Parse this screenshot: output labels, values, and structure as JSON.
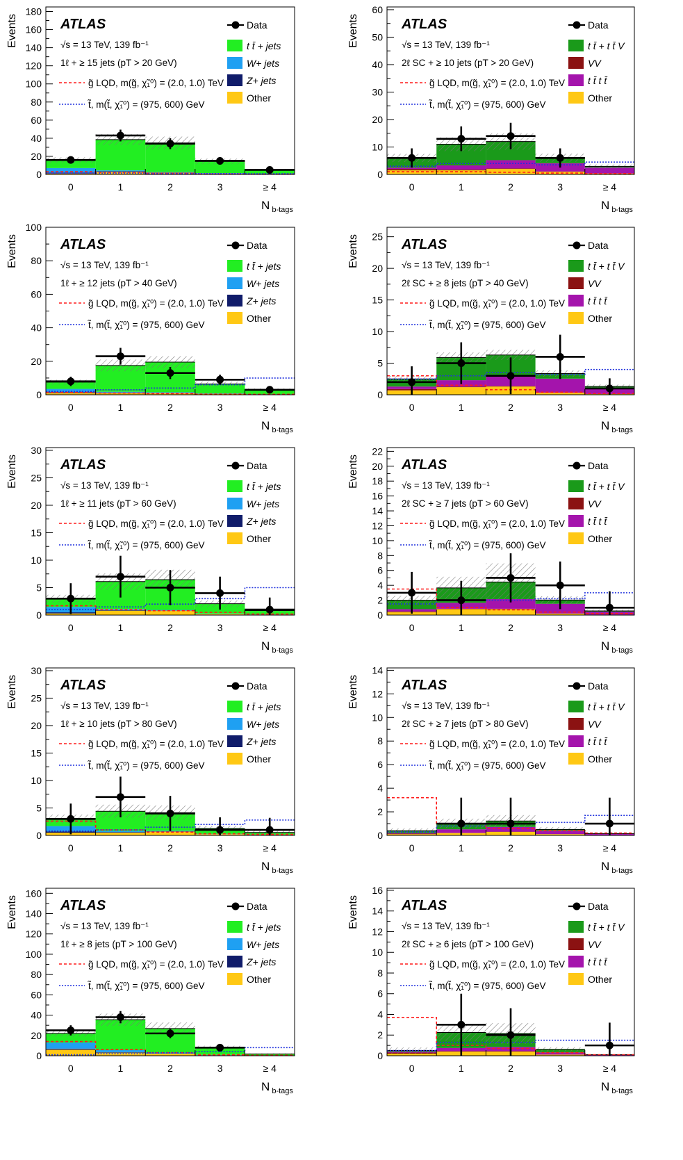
{
  "legend_labels": {
    "data": "Data",
    "ttbar_jets": "t t̄ + jets",
    "w_jets": "W+ jets",
    "z_jets": "Z+ jets",
    "other": "Other",
    "ttbar_ttv": "t t̄ + t t̄ V",
    "vv": "VV",
    "tttt": "t t̄ t t̄",
    "gluino": "g̃ LQD, m(g̃, χ̃₁⁰) = (2.0, 1.0) TeV",
    "stop": "t̃, m(t̃, χ̃₁⁰) = (975, 600) GeV"
  },
  "common_text": {
    "experiment": "ATLAS",
    "energy_lumi": "√s = 13 TeV, 139 fb⁻¹",
    "xlabel": "N b-tags",
    "ylabel": "Events"
  },
  "colors": {
    "ttbar_jets": "#22ee22",
    "w_jets": "#1fa0f2",
    "z_jets": "#101c6a",
    "other": "#ffc814",
    "ttbar_ttv": "#1a9a1a",
    "vv": "#8b1212",
    "tttt": "#a414ac",
    "gluino": "#ff1a1a",
    "stop": "#2233dd",
    "data": "#000000"
  },
  "chart_data": [
    {
      "type": "bar",
      "stacked": true,
      "channel": "1l",
      "selection": "1ℓ + ≥ 15 jets (pT > 20 GeV)",
      "categories": [
        "0",
        "1",
        "2",
        "3",
        "≥ 4"
      ],
      "ylim": [
        0,
        185
      ],
      "yticks": [
        0,
        20,
        40,
        60,
        80,
        100,
        120,
        140,
        160,
        180
      ],
      "series": [
        {
          "name": "Other",
          "values": [
            1,
            3,
            2,
            1,
            0.5
          ]
        },
        {
          "name": "Z+ jets",
          "values": [
            1,
            0.5,
            0.3,
            0.2,
            0.1
          ]
        },
        {
          "name": "W+ jets",
          "values": [
            5,
            1,
            0.5,
            0.3,
            0.1
          ]
        },
        {
          "name": "t t̄ + jets",
          "values": [
            9,
            34,
            32,
            13,
            4.4
          ]
        }
      ],
      "uncertainty": [
        3,
        6,
        7,
        3,
        1
      ],
      "data": [
        16,
        43,
        34,
        15,
        5
      ],
      "data_err": [
        4,
        6.5,
        6,
        4,
        2.2
      ],
      "gluino": [
        3,
        2,
        1,
        0.5,
        0.3
      ],
      "stop": [
        1.5,
        1.5,
        1,
        0.8,
        0.8
      ]
    },
    {
      "type": "bar",
      "stacked": true,
      "channel": "2lsc",
      "selection": "2ℓ SC + ≥ 10 jets (pT > 20 GeV)",
      "categories": [
        "0",
        "1",
        "2",
        "3",
        "≥ 4"
      ],
      "ylim": [
        0,
        61
      ],
      "yticks": [
        0,
        10,
        20,
        30,
        40,
        50,
        60
      ],
      "series": [
        {
          "name": "Other",
          "values": [
            1.5,
            1.5,
            2,
            1,
            0.3
          ]
        },
        {
          "name": "VV",
          "values": [
            0.5,
            0.3,
            0.2,
            0.1,
            0.05
          ]
        },
        {
          "name": "t t̄ t t̄",
          "values": [
            0.5,
            1.5,
            3,
            3,
            2.2
          ]
        },
        {
          "name": "t t̄ + t t̄ V",
          "values": [
            3.5,
            7.7,
            6.8,
            2,
            0.4
          ]
        }
      ],
      "uncertainty": [
        1.5,
        2.5,
        3,
        1.5,
        0.7
      ],
      "data": [
        6,
        13,
        14,
        6,
        null
      ],
      "data_err": [
        3.5,
        4.5,
        4.8,
        3.5,
        0
      ],
      "gluino": [
        1,
        1,
        0.8,
        0.5,
        0.3
      ],
      "stop": [
        3,
        4,
        4,
        3.5,
        4.5
      ]
    },
    {
      "type": "bar",
      "stacked": true,
      "channel": "1l",
      "selection": "1ℓ + ≥ 12 jets (pT > 40 GeV)",
      "categories": [
        "0",
        "1",
        "2",
        "3",
        "≥ 4"
      ],
      "ylim": [
        0,
        100
      ],
      "yticks": [
        0,
        20,
        40,
        60,
        80,
        100
      ],
      "series": [
        {
          "name": "Other",
          "values": [
            1,
            1,
            1,
            0.5,
            0.2
          ]
        },
        {
          "name": "Z+ jets",
          "values": [
            0.5,
            0.3,
            0.2,
            0.1,
            0.05
          ]
        },
        {
          "name": "W+ jets",
          "values": [
            2,
            0.5,
            0.3,
            0.2,
            0.05
          ]
        },
        {
          "name": "t t̄ + jets",
          "values": [
            4,
            15.7,
            18,
            5.7,
            2.7
          ]
        }
      ],
      "uncertainty": [
        1.5,
        3.5,
        3.5,
        1.5,
        0.8
      ],
      "data": [
        8,
        23,
        13,
        9,
        3
      ],
      "data_err": [
        2.8,
        5,
        3.6,
        3,
        1.7
      ],
      "gluino": [
        1.5,
        1,
        0.7,
        0.4,
        0.3
      ],
      "stop": [
        2,
        3,
        4,
        6,
        10
      ]
    },
    {
      "type": "bar",
      "stacked": true,
      "channel": "2lsc",
      "selection": "2ℓ SC + ≥ 8 jets (pT > 40 GeV)",
      "categories": [
        "0",
        "1",
        "2",
        "3",
        "≥ 4"
      ],
      "ylim": [
        0,
        26.5
      ],
      "yticks": [
        0,
        5,
        10,
        15,
        20,
        25
      ],
      "series": [
        {
          "name": "Other",
          "values": [
            0.7,
            1.2,
            1.3,
            0.3,
            0.1
          ]
        },
        {
          "name": "VV",
          "values": [
            0.2,
            0.1,
            0.1,
            0.05,
            0.02
          ]
        },
        {
          "name": "t t̄ t t̄",
          "values": [
            0.4,
            1,
            1.6,
            2.2,
            1
          ]
        },
        {
          "name": "t t̄ + t t̄ V",
          "values": [
            1.2,
            3.6,
            3.3,
            0.8,
            0.2
          ]
        }
      ],
      "uncertainty": [
        0.5,
        0.8,
        0.8,
        0.5,
        0.3
      ],
      "data": [
        2,
        5,
        3,
        6,
        1
      ],
      "data_err": [
        2.5,
        3.3,
        2.9,
        3.5,
        1.6
      ],
      "gluino": [
        3,
        1.5,
        0.8,
        0.4,
        0.2
      ],
      "stop": [
        2.5,
        3,
        3.5,
        3.2,
        4
      ]
    },
    {
      "type": "bar",
      "stacked": true,
      "channel": "1l",
      "selection": "1ℓ + ≥ 11 jets (pT > 60 GeV)",
      "categories": [
        "0",
        "1",
        "2",
        "3",
        "≥ 4"
      ],
      "ylim": [
        0,
        30.5
      ],
      "yticks": [
        0,
        5,
        10,
        15,
        20,
        25,
        30
      ],
      "series": [
        {
          "name": "Other",
          "values": [
            0.3,
            0.8,
            0.8,
            0.2,
            0.1
          ]
        },
        {
          "name": "Z+ jets",
          "values": [
            0.2,
            0.1,
            0.05,
            0.02,
            0.01
          ]
        },
        {
          "name": "W+ jets",
          "values": [
            1,
            0.2,
            0.1,
            0.05,
            0.02
          ]
        },
        {
          "name": "t t̄ + jets",
          "values": [
            1.5,
            5,
            5.5,
            1.8,
            0.7
          ]
        }
      ],
      "uncertainty": [
        0.7,
        1.5,
        1.8,
        0.6,
        0.3
      ],
      "data": [
        3,
        7,
        5,
        4,
        1
      ],
      "data_err": [
        2.8,
        3.8,
        3.2,
        3,
        2.2
      ],
      "gluino": [
        1.7,
        1,
        0.8,
        0.5,
        0.2
      ],
      "stop": [
        1,
        1.5,
        2,
        3,
        5
      ]
    },
    {
      "type": "bar",
      "stacked": true,
      "channel": "2lsc",
      "selection": "2ℓ SC + ≥ 7 jets (pT > 60 GeV)",
      "categories": [
        "0",
        "1",
        "2",
        "3",
        "≥ 4"
      ],
      "ylim": [
        0,
        22.5
      ],
      "yticks": [
        0,
        2,
        4,
        6,
        8,
        10,
        12,
        14,
        16,
        18,
        20,
        22
      ],
      "series": [
        {
          "name": "Other",
          "values": [
            0.4,
            0.8,
            0.8,
            0.2,
            0.05
          ]
        },
        {
          "name": "VV",
          "values": [
            0.1,
            0.05,
            0.05,
            0.02,
            0.01
          ]
        },
        {
          "name": "t t̄ t t̄",
          "values": [
            0.3,
            0.8,
            1.3,
            1.3,
            0.4
          ]
        },
        {
          "name": "t t̄ + t t̄ V",
          "values": [
            1.2,
            2,
            2.3,
            0.5,
            0.1
          ]
        }
      ],
      "uncertainty": [
        0.6,
        1.5,
        2.5,
        0.5,
        0.2
      ],
      "data": [
        3,
        2,
        5,
        4,
        1
      ],
      "data_err": [
        2.8,
        2.6,
        3.3,
        3.2,
        2.2
      ],
      "gluino": [
        3.5,
        1,
        0.7,
        0.4,
        0.2
      ],
      "stop": [
        1.5,
        2,
        2,
        2.2,
        3
      ]
    },
    {
      "type": "bar",
      "stacked": true,
      "channel": "1l",
      "selection": "1ℓ + ≥ 10 jets (pT > 80 GeV)",
      "categories": [
        "0",
        "1",
        "2",
        "3",
        "≥ 4"
      ],
      "ylim": [
        0,
        30.5
      ],
      "yticks": [
        0,
        5,
        10,
        15,
        20,
        25,
        30
      ],
      "series": [
        {
          "name": "Other",
          "values": [
            0.5,
            0.5,
            0.7,
            0.2,
            0.1
          ]
        },
        {
          "name": "Z+ jets",
          "values": [
            0.2,
            0.1,
            0.05,
            0.02,
            0.01
          ]
        },
        {
          "name": "W+ jets",
          "values": [
            1,
            0.2,
            0.1,
            0.05,
            0.02
          ]
        },
        {
          "name": "t t̄ + jets",
          "values": [
            1.3,
            3.6,
            3.3,
            1,
            0.4
          ]
        }
      ],
      "uncertainty": [
        0.8,
        1.2,
        1.3,
        0.5,
        0.3
      ],
      "data": [
        3,
        7,
        4,
        1,
        1
      ],
      "data_err": [
        2.8,
        3.7,
        3.2,
        2.3,
        2.2
      ],
      "gluino": [
        2.6,
        1,
        0.6,
        0.3,
        0.2
      ],
      "stop": [
        0.8,
        1,
        1.5,
        2,
        2.8
      ]
    },
    {
      "type": "bar",
      "stacked": true,
      "channel": "2lsc",
      "selection": "2ℓ SC + ≥ 7 jets (pT > 80 GeV)",
      "categories": [
        "0",
        "1",
        "2",
        "3",
        "≥ 4"
      ],
      "ylim": [
        0,
        14.2
      ],
      "yticks": [
        0,
        2,
        4,
        6,
        8,
        10,
        12,
        14
      ],
      "series": [
        {
          "name": "Other",
          "values": [
            0.1,
            0.2,
            0.3,
            0.1,
            0.02
          ]
        },
        {
          "name": "VV",
          "values": [
            0.05,
            0.02,
            0.02,
            0.01,
            0.01
          ]
        },
        {
          "name": "t t̄ t t̄",
          "values": [
            0.05,
            0.3,
            0.4,
            0.3,
            0.1
          ]
        },
        {
          "name": "t t̄ + t t̄ V",
          "values": [
            0.2,
            0.5,
            0.5,
            0.1,
            0.02
          ]
        }
      ],
      "uncertainty": [
        0.2,
        0.4,
        0.5,
        0.2,
        0.1
      ],
      "data": [
        null,
        1,
        1,
        null,
        1
      ],
      "data_err": [
        0,
        2.2,
        2.2,
        0,
        2.2
      ],
      "gluino": [
        3.2,
        1,
        0.6,
        0.4,
        0.2
      ],
      "stop": [
        0.3,
        0.8,
        1,
        1.1,
        1.7
      ]
    },
    {
      "type": "bar",
      "stacked": true,
      "channel": "1l",
      "selection": "1ℓ + ≥ 8 jets (pT > 100 GeV)",
      "categories": [
        "0",
        "1",
        "2",
        "3",
        "≥ 4"
      ],
      "ylim": [
        0,
        165
      ],
      "yticks": [
        0,
        20,
        40,
        60,
        80,
        100,
        120,
        140,
        160
      ],
      "series": [
        {
          "name": "Other",
          "values": [
            6,
            3,
            2,
            0.5,
            0.2
          ]
        },
        {
          "name": "Z+ jets",
          "values": [
            1,
            0.5,
            0.3,
            0.1,
            0.05
          ]
        },
        {
          "name": "W+ jets",
          "values": [
            6,
            2,
            0.5,
            0.2,
            0.05
          ]
        },
        {
          "name": "t t̄ + jets",
          "values": [
            9,
            30,
            24,
            7,
            1.5
          ]
        }
      ],
      "uncertainty": [
        3,
        6,
        6,
        2,
        0.5
      ],
      "data": [
        25,
        38,
        22,
        8,
        null
      ],
      "data_err": [
        5,
        6,
        4.7,
        2.8,
        0
      ],
      "gluino": [
        14,
        6,
        3,
        1,
        0.5
      ],
      "stop": [
        1,
        2,
        3,
        4,
        8
      ]
    },
    {
      "type": "bar",
      "stacked": true,
      "channel": "2lsc",
      "selection": "2ℓ SC + ≥ 6 jets (pT > 100 GeV)",
      "categories": [
        "0",
        "1",
        "2",
        "3",
        "≥ 4"
      ],
      "ylim": [
        0,
        16.2
      ],
      "yticks": [
        0,
        2,
        4,
        6,
        8,
        10,
        12,
        14,
        16
      ],
      "series": [
        {
          "name": "Other",
          "values": [
            0.2,
            0.4,
            0.4,
            0.1,
            0.02
          ]
        },
        {
          "name": "VV",
          "values": [
            0.1,
            0.05,
            0.05,
            0.02,
            0.01
          ]
        },
        {
          "name": "t t̄ t t̄",
          "values": [
            0.1,
            0.3,
            0.4,
            0.2,
            0.05
          ]
        },
        {
          "name": "t t̄ + t t̄ V",
          "values": [
            0.1,
            1.5,
            1.3,
            0.3,
            0.02
          ]
        }
      ],
      "uncertainty": [
        0.3,
        0.8,
        1,
        0.2,
        0.05
      ],
      "data": [
        null,
        3,
        2,
        null,
        1
      ],
      "data_err": [
        0,
        3,
        2.6,
        0,
        2.2
      ],
      "gluino": [
        3.7,
        1,
        0.7,
        0.3,
        0.1
      ],
      "stop": [
        0.5,
        1.3,
        1.3,
        1.5,
        1.5
      ]
    }
  ]
}
